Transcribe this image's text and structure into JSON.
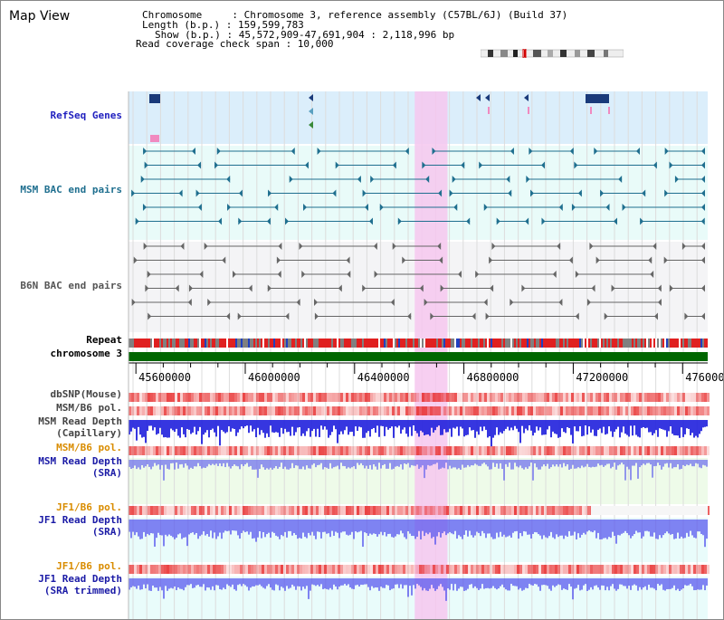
{
  "page_title": "Map View",
  "info": {
    "chromosome": "Chromosome     : Chromosome 3, reference assembly (C57BL/6J) (Build 37)",
    "length": "Length (b.p.) : 159,599,783",
    "show": "Show (b.p.) : 45,572,909-47,691,904 : 2,118,996 bp",
    "read_span": "Read coverage check span : 10,000"
  },
  "region": {
    "start": 45572909,
    "end": 47691904
  },
  "selection_highlight": {
    "start": 46620000,
    "end": 46740000
  },
  "ruler": {
    "ticks": [
      "45600000",
      "46000000",
      "46400000",
      "46800000",
      "47200000",
      "47600000"
    ],
    "tick_values": [
      45600000,
      46000000,
      46400000,
      46800000,
      47200000,
      47600000
    ]
  },
  "tracks": [
    {
      "id": "refseq",
      "label_lines": [
        "RefSeq Genes"
      ],
      "color": "#1f1fbf"
    },
    {
      "id": "msm-bac",
      "label_lines": [
        "MSM BAC end pairs"
      ],
      "color": "#1f6f8f"
    },
    {
      "id": "b6n-bac",
      "label_lines": [
        "B6N BAC end pairs"
      ],
      "color": "#555555"
    },
    {
      "id": "repeat",
      "label_lines": [
        "Repeat"
      ],
      "color": "#000000"
    },
    {
      "id": "chromosome",
      "label_lines": [
        "chromosome 3"
      ],
      "color": "#000000"
    },
    {
      "id": "dbsnp",
      "label_lines": [
        "dbSNP(Mouse)"
      ],
      "color": "#444444"
    },
    {
      "id": "msm-pol",
      "label_lines": [
        "MSM/B6 pol."
      ],
      "color": "#444444"
    },
    {
      "id": "msm-depth-cap",
      "label_lines": [
        "MSM Read Depth",
        "(Capillary)"
      ],
      "color": "#444444"
    },
    {
      "id": "msm-pol-sra",
      "label_lines": [
        "MSM/B6 pol."
      ],
      "color": "#d98c00"
    },
    {
      "id": "msm-depth-sra",
      "label_lines": [
        "MSM Read Depth",
        "(SRA)"
      ],
      "color": "#1a1aa6"
    },
    {
      "id": "jf1-pol",
      "label_lines": [
        "JF1/B6 pol."
      ],
      "color": "#d98c00"
    },
    {
      "id": "jf1-depth",
      "label_lines": [
        "JF1 Read Depth",
        "(SRA)"
      ],
      "color": "#1a1aa6"
    },
    {
      "id": "jf1-pol-trim",
      "label_lines": [
        "JF1/B6 pol."
      ],
      "color": "#d98c00"
    },
    {
      "id": "jf1-depth-trim",
      "label_lines": [
        "JF1 Read Depth",
        "(SRA trimmed)"
      ],
      "color": "#1a1aa6"
    }
  ],
  "colors": {
    "refseq_bg": "#dbeefb",
    "bac_bg": "#e9fbf9",
    "b6n_bg": "#f4f4f6",
    "depth_bg_msm": "#eefbe9",
    "depth_bg_jf1": "#e9fcfb",
    "selection": "#f6c7ef",
    "chromosome_bar": "#006600",
    "depth_fill": "#5050ee",
    "pol_fill": "#f06060"
  },
  "icons": [
    "ideogram-icon"
  ]
}
